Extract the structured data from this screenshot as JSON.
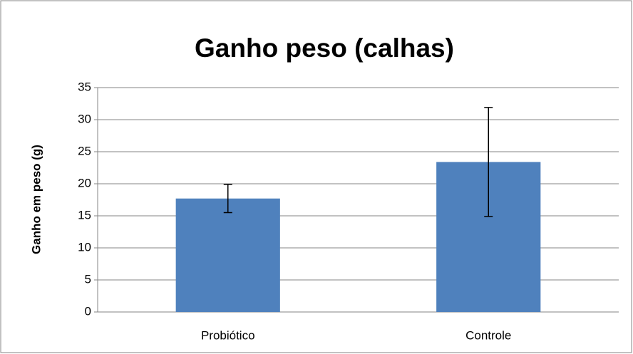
{
  "chart_data": {
    "type": "bar",
    "title": "Ganho peso (calhas)",
    "y_label": "Ganho em peso (g)",
    "categories": [
      "Probiótico",
      "Controle"
    ],
    "values": [
      17.7,
      23.4
    ],
    "errors": [
      2.2,
      8.5
    ],
    "color": "#4f81bd",
    "ylim": [
      0,
      35
    ],
    "yticks": [
      0,
      5,
      10,
      15,
      20,
      25,
      30,
      35
    ],
    "grid": true
  }
}
